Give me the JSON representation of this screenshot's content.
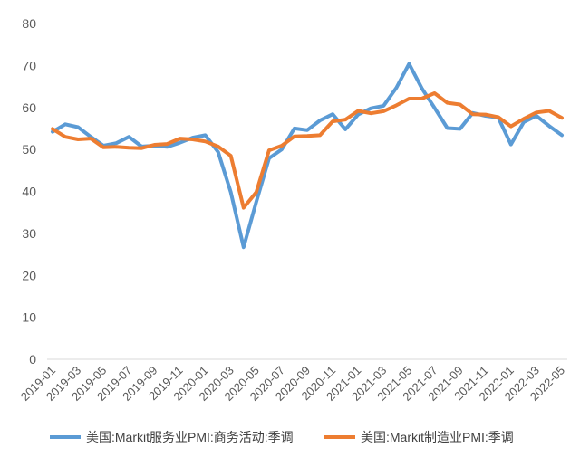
{
  "chart_data": {
    "type": "line",
    "title": "",
    "xlabel": "",
    "ylabel": "",
    "ylim": [
      0,
      80
    ],
    "yticks": [
      "0",
      "10",
      "20",
      "30",
      "40",
      "50",
      "60",
      "70",
      "80"
    ],
    "grid": false,
    "legend_position": "bottom",
    "x": [
      "2019-01",
      "2019-02",
      "2019-03",
      "2019-04",
      "2019-05",
      "2019-06",
      "2019-07",
      "2019-08",
      "2019-09",
      "2019-10",
      "2019-11",
      "2019-12",
      "2020-01",
      "2020-02",
      "2020-03",
      "2020-04",
      "2020-05",
      "2020-06",
      "2020-07",
      "2020-08",
      "2020-09",
      "2020-10",
      "2020-11",
      "2020-12",
      "2021-01",
      "2021-02",
      "2021-03",
      "2021-04",
      "2021-05",
      "2021-06",
      "2021-07",
      "2021-08",
      "2021-09",
      "2021-10",
      "2021-11",
      "2021-12",
      "2022-01",
      "2022-02",
      "2022-03",
      "2022-04",
      "2022-05"
    ],
    "xtick_labels": [
      "2019-01",
      "2019-03",
      "2019-05",
      "2019-07",
      "2019-09",
      "2019-11",
      "2020-01",
      "2020-03",
      "2020-05",
      "2020-07",
      "2020-09",
      "2020-11",
      "2021-01",
      "2021-03",
      "2021-05",
      "2021-07",
      "2021-09",
      "2021-11",
      "2022-01",
      "2022-03",
      "2022-05"
    ],
    "series": [
      {
        "name": "美国:Markit服务业PMI:商务活动:季调",
        "color": "#5B9BD5",
        "values": [
          54.2,
          56.0,
          55.3,
          53.0,
          50.9,
          51.5,
          53.0,
          50.7,
          50.9,
          50.6,
          51.6,
          52.8,
          53.4,
          49.4,
          39.8,
          26.7,
          37.5,
          47.9,
          50.0,
          55.0,
          54.6,
          56.9,
          58.4,
          54.8,
          58.3,
          59.8,
          60.4,
          64.7,
          70.4,
          64.6,
          59.9,
          55.1,
          54.9,
          58.7,
          58.0,
          57.6,
          51.2,
          56.5,
          58.0,
          55.6,
          53.4
        ]
      },
      {
        "name": "美国:Markit制造业PMI:季调",
        "color": "#ED7D31",
        "values": [
          54.9,
          53.0,
          52.4,
          52.6,
          50.5,
          50.6,
          50.4,
          50.3,
          51.1,
          51.3,
          52.6,
          52.4,
          51.9,
          50.7,
          48.5,
          36.1,
          39.8,
          49.8,
          50.9,
          53.1,
          53.2,
          53.4,
          56.7,
          57.1,
          59.2,
          58.6,
          59.1,
          60.5,
          62.1,
          62.1,
          63.4,
          61.1,
          60.7,
          58.4,
          58.3,
          57.7,
          55.5,
          57.3,
          58.8,
          59.2,
          57.5
        ]
      }
    ]
  }
}
